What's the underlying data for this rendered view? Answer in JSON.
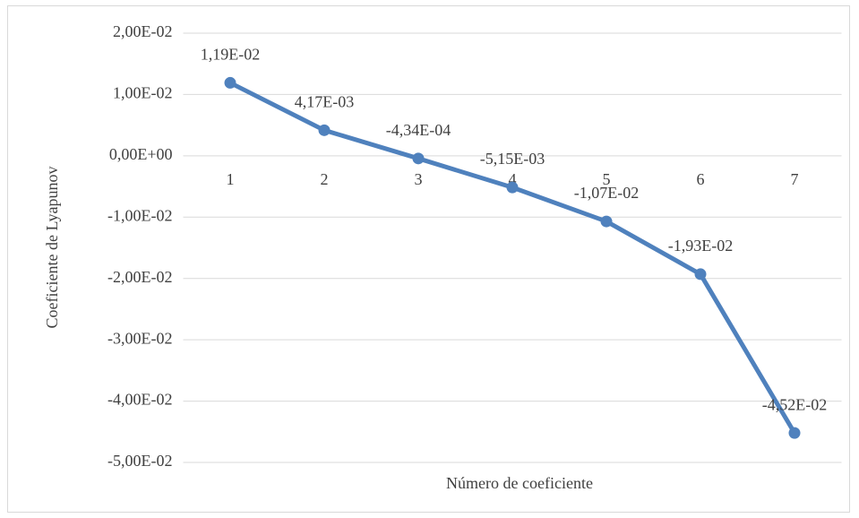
{
  "chart_data": {
    "type": "line",
    "x_label": "Número de coeficiente",
    "y_label": "Coeficiente de Lyapunov",
    "categories": [
      "1",
      "2",
      "3",
      "4",
      "5",
      "6",
      "7"
    ],
    "series": [
      {
        "color": "#4f81bd",
        "values": [
          0.0119,
          0.00417,
          -0.000434,
          -0.00515,
          -0.0107,
          -0.0193,
          -0.0452
        ],
        "value_labels": [
          "1,19E-02",
          "4,17E-03",
          "-4,34E-04",
          "-5,15E-03",
          "-1,07E-02",
          "-1,93E-02",
          "-4,52E-02"
        ]
      }
    ],
    "ylim": [
      -0.05,
      0.02
    ],
    "yticks": [
      {
        "value": 0.02,
        "label": "2,00E-02"
      },
      {
        "value": 0.01,
        "label": "1,00E-02"
      },
      {
        "value": 0,
        "label": "0,00E+00"
      },
      {
        "value": -0.01,
        "label": "-1,00E-02"
      },
      {
        "value": -0.02,
        "label": "-2,00E-02"
      },
      {
        "value": -0.03,
        "label": "-3,00E-02"
      },
      {
        "value": -0.04,
        "label": "-4,00E-02"
      },
      {
        "value": -0.05,
        "label": "-5,00E-02"
      }
    ],
    "grid": true
  }
}
